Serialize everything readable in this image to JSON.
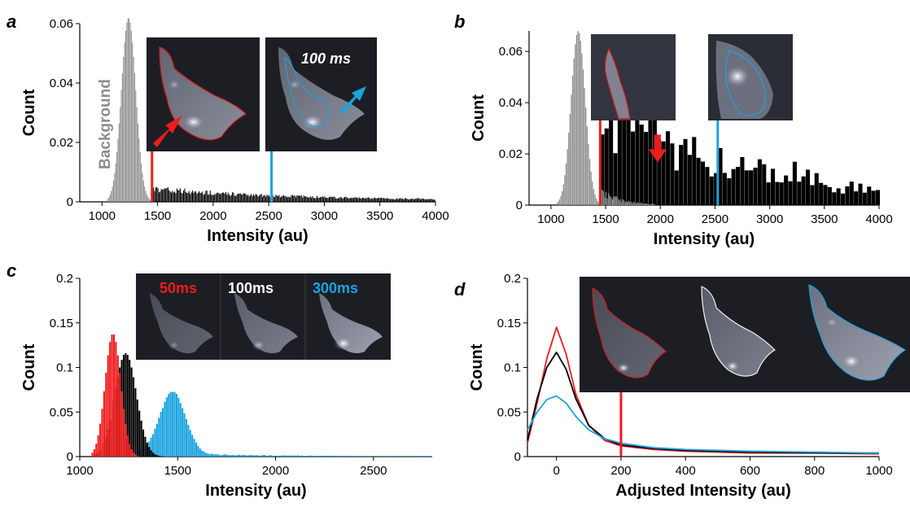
{
  "colors": {
    "red": "#ee1c1c",
    "blue": "#1aa3e0",
    "gray": "#8f8f8f",
    "black": "#000000",
    "white": "#ffffff",
    "inset_bg": "#1c1e24"
  },
  "panels": {
    "a": {
      "label": "a"
    },
    "b": {
      "label": "b"
    },
    "c": {
      "label": "c"
    },
    "d": {
      "label": "d"
    }
  },
  "insets": {
    "a_exposure": "100 ms",
    "a_annotation": "Background",
    "c_exposures": [
      "50ms",
      "100ms",
      "300ms"
    ]
  },
  "chart_data": [
    {
      "panel": "a",
      "type": "bar",
      "xlabel": "Intensity (au)",
      "ylabel": "Count",
      "xlim": [
        800,
        4000
      ],
      "ylim": [
        0,
        0.06
      ],
      "xticks": [
        1000,
        1500,
        2000,
        2500,
        3000,
        3500,
        4000
      ],
      "yticks": [
        0,
        0.02,
        0.04,
        0.06
      ],
      "ytick_labels": [
        "0",
        "0.02",
        "0.04",
        "0.06"
      ],
      "series": [
        {
          "color": "gray",
          "type": "histogram",
          "peak_x": 1240,
          "peak_y": 0.062,
          "width": 65
        },
        {
          "color": "black",
          "type": "histogram",
          "x_start": 1450,
          "y_start": 0.004,
          "x_end": 4000,
          "y_end": 0.0005
        }
      ],
      "markers": [
        {
          "x": 1450,
          "color": "red",
          "y_top": 0.014
        },
        {
          "x": 2525,
          "color": "blue",
          "y_top": 0.014
        }
      ]
    },
    {
      "panel": "b",
      "type": "bar",
      "xlabel": "Intensity (au)",
      "ylabel": "Count",
      "xlim": [
        800,
        4000
      ],
      "ylim": [
        0,
        0.068
      ],
      "xticks": [
        1000,
        1500,
        2000,
        2500,
        3000,
        3500,
        4000
      ],
      "yticks": [
        0,
        0.02,
        0.04,
        0.06
      ],
      "ytick_labels": [
        "0",
        "0.02",
        "0.04",
        "0.06"
      ],
      "series": [
        {
          "color": "gray",
          "type": "histogram",
          "peak_x": 1250,
          "peak_y": 0.068,
          "width": 65
        },
        {
          "color": "black",
          "type": "histogram",
          "x_start": 1450,
          "x_end": 4000,
          "approx_profile": [
            [
              1450,
              0.027
            ],
            [
              1600,
              0.03
            ],
            [
              1750,
              0.033
            ],
            [
              1900,
              0.03
            ],
            [
              2000,
              0.024
            ],
            [
              2200,
              0.021
            ],
            [
              2500,
              0.018
            ],
            [
              2700,
              0.016
            ],
            [
              3000,
              0.013
            ],
            [
              3300,
              0.012
            ],
            [
              3600,
              0.008
            ],
            [
              4000,
              0.005
            ]
          ]
        }
      ],
      "markers": [
        {
          "x": 1450,
          "color": "red",
          "y_top": 0.036
        },
        {
          "x": 2525,
          "color": "blue",
          "y_top": 0.036
        }
      ],
      "arrow": {
        "x": 1975,
        "y": 0.018,
        "color": "red"
      }
    },
    {
      "panel": "c",
      "type": "bar",
      "xlabel": "Intensity (au)",
      "ylabel": "Count",
      "xlim": [
        1000,
        2800
      ],
      "ylim": [
        0,
        0.2
      ],
      "xticks": [
        1000,
        1500,
        2000,
        2500
      ],
      "yticks": [
        0,
        0.05,
        0.1,
        0.15,
        0.2
      ],
      "ytick_labels": [
        "0",
        "0.05",
        "0.1",
        "0.15",
        "0.2"
      ],
      "series": [
        {
          "name": "50ms",
          "color": "red",
          "type": "histogram",
          "peak_x": 1170,
          "peak_y": 0.138,
          "width": 40
        },
        {
          "name": "100ms",
          "color": "black",
          "type": "histogram",
          "peak_x": 1235,
          "peak_y": 0.116,
          "width": 55
        },
        {
          "name": "300ms",
          "color": "blue",
          "type": "histogram",
          "peak_x": 1475,
          "peak_y": 0.07,
          "width": 65,
          "tail": 0.003
        }
      ]
    },
    {
      "panel": "d",
      "type": "line",
      "xlabel": "Adjusted Intensity (au)",
      "ylabel": "Count",
      "xlim": [
        -90,
        1000
      ],
      "ylim": [
        0,
        0.2
      ],
      "xticks": [
        0,
        200,
        400,
        600,
        800,
        1000
      ],
      "yticks": [
        0,
        0.05,
        0.1,
        0.15,
        0.2
      ],
      "ytick_labels": [
        "0",
        "0.05",
        "0.1",
        "0.15",
        "0.2"
      ],
      "series": [
        {
          "color": "red",
          "x": [
            -90,
            -60,
            -30,
            0,
            30,
            60,
            100,
            150,
            200,
            300,
            400,
            600,
            800,
            1000
          ],
          "y": [
            0.015,
            0.06,
            0.11,
            0.145,
            0.115,
            0.07,
            0.035,
            0.018,
            0.012,
            0.008,
            0.006,
            0.004,
            0.004,
            0.003
          ]
        },
        {
          "color": "black",
          "x": [
            -90,
            -60,
            -30,
            0,
            30,
            60,
            100,
            150,
            200,
            300,
            400,
            600,
            800,
            1000
          ],
          "y": [
            0.018,
            0.065,
            0.1,
            0.117,
            0.098,
            0.065,
            0.035,
            0.02,
            0.013,
            0.009,
            0.007,
            0.005,
            0.004,
            0.004
          ]
        },
        {
          "color": "blue",
          "x": [
            -90,
            -60,
            -30,
            0,
            30,
            60,
            100,
            150,
            200,
            300,
            400,
            600,
            800,
            1000
          ],
          "y": [
            0.03,
            0.05,
            0.064,
            0.068,
            0.06,
            0.045,
            0.03,
            0.02,
            0.015,
            0.01,
            0.008,
            0.006,
            0.005,
            0.004
          ]
        }
      ],
      "markers": [
        {
          "x": 200,
          "color": "red",
          "y_top": 0.08
        }
      ]
    }
  ]
}
